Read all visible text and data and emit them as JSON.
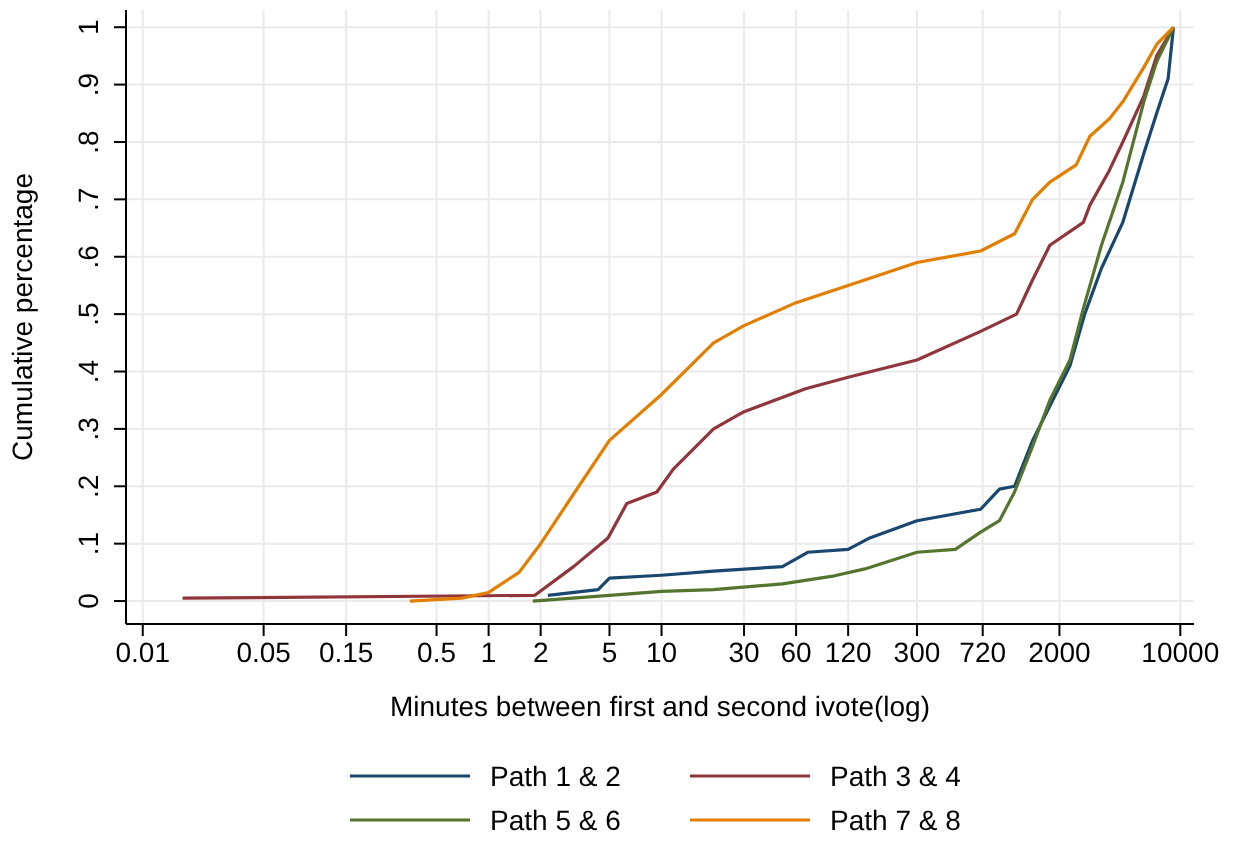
{
  "chart_data": {
    "type": "line",
    "xlabel": "Minutes between first and second ivote(log)",
    "ylabel": "Cumulative percentage",
    "log": "x",
    "grid": true,
    "legend": "bottom",
    "line_style": "solid",
    "marker": "none",
    "xlim": [
      0.008,
      12000
    ],
    "ylim": [
      -0.04,
      1.03
    ],
    "xticks": [
      0.01,
      0.05,
      0.15,
      0.5,
      1,
      2,
      5,
      10,
      30,
      60,
      120,
      300,
      720,
      2000,
      10000
    ],
    "yticks": [
      0,
      {
        "value": 0.1,
        "label": ".1"
      },
      {
        "value": 0.2,
        "label": ".2"
      },
      {
        "value": 0.3,
        "label": ".3"
      },
      {
        "value": 0.4,
        "label": ".4"
      },
      {
        "value": 0.5,
        "label": ".5"
      },
      {
        "value": 0.6,
        "label": ".6"
      },
      {
        "value": 0.7,
        "label": ".7"
      },
      {
        "value": 0.8,
        "label": ".8"
      },
      {
        "value": 0.9,
        "label": ".9"
      },
      1
    ],
    "series": [
      {
        "name": "Path 1 & 2",
        "color": "#1a476f",
        "x": [
          2.2,
          4.3,
          5,
          10,
          20,
          50,
          70,
          120,
          160,
          300,
          700,
          900,
          1100,
          1400,
          1760,
          2300,
          2800,
          3500,
          4650,
          6150,
          7300,
          8500,
          9130
        ],
        "values": [
          0.01,
          0.02,
          0.04,
          0.045,
          0.052,
          0.06,
          0.085,
          0.09,
          0.11,
          0.14,
          0.16,
          0.195,
          0.2,
          0.28,
          0.34,
          0.41,
          0.5,
          0.58,
          0.66,
          0.78,
          0.85,
          0.91,
          1
        ]
      },
      {
        "name": "Path 3 & 4",
        "color": "#90353b",
        "x": [
          0.017,
          1.85,
          3.1,
          4.9,
          6.3,
          9.4,
          11.7,
          20,
          30,
          68,
          120,
          300,
          700,
          1130,
          1400,
          1760,
          2750,
          3000,
          3880,
          4650,
          6150,
          7300,
          9130
        ],
        "values": [
          0.005,
          0.01,
          0.06,
          0.11,
          0.17,
          0.19,
          0.23,
          0.3,
          0.33,
          0.37,
          0.39,
          0.42,
          0.47,
          0.5,
          0.56,
          0.62,
          0.66,
          0.69,
          0.75,
          0.8,
          0.88,
          0.95,
          1
        ]
      },
      {
        "name": "Path 5 & 6",
        "color": "#55752f",
        "x": [
          1.8,
          5,
          10,
          20,
          50,
          100,
          150,
          300,
          500,
          700,
          900,
          1100,
          1400,
          1760,
          2300,
          2750,
          3500,
          4650,
          6150,
          7300,
          9130
        ],
        "values": [
          0,
          0.01,
          0.017,
          0.02,
          0.03,
          0.044,
          0.056,
          0.085,
          0.09,
          0.12,
          0.14,
          0.19,
          0.27,
          0.35,
          0.42,
          0.51,
          0.62,
          0.73,
          0.87,
          0.94,
          1
        ]
      },
      {
        "name": "Path 7 & 8",
        "color": "#e37e00",
        "x": [
          0.35,
          0.7,
          1,
          1.5,
          2,
          3,
          5,
          10,
          20,
          30,
          60,
          120,
          300,
          700,
          1100,
          1400,
          1760,
          2500,
          3000,
          3880,
          4650,
          6150,
          7300,
          9130
        ],
        "values": [
          0,
          0.005,
          0.015,
          0.05,
          0.1,
          0.18,
          0.28,
          0.36,
          0.45,
          0.48,
          0.52,
          0.55,
          0.59,
          0.61,
          0.64,
          0.7,
          0.73,
          0.76,
          0.81,
          0.84,
          0.87,
          0.93,
          0.97,
          1
        ]
      }
    ]
  }
}
